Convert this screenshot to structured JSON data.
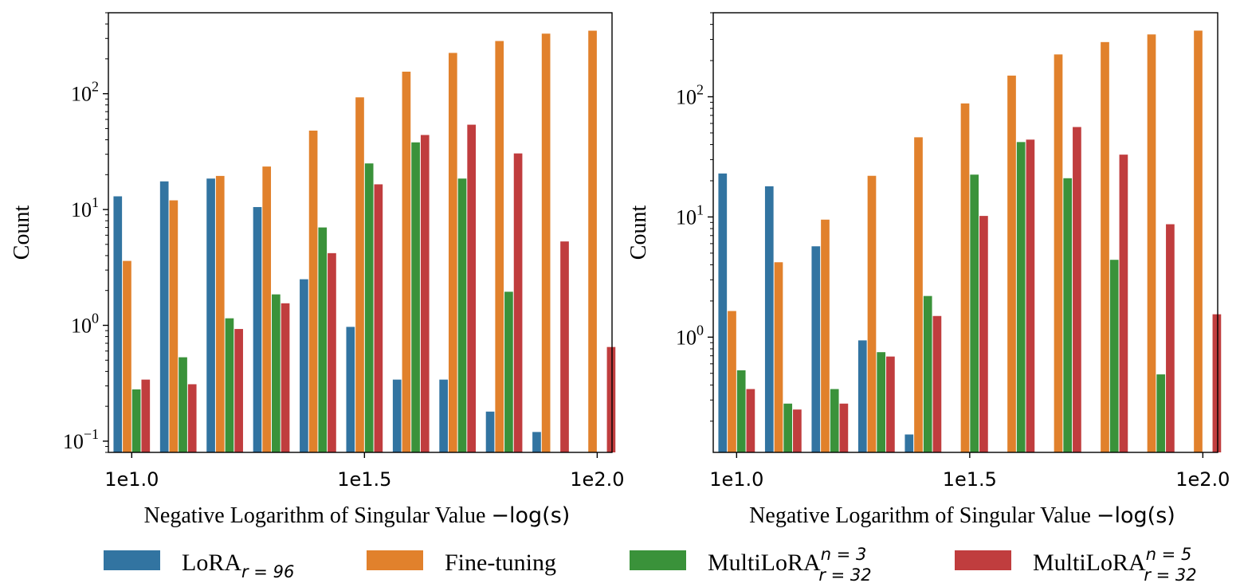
{
  "chart_data": [
    {
      "type": "bar",
      "yscale": "log",
      "ylim": [
        0.08,
        500
      ],
      "xlabel": "Negative Logarithm of Singular Value",
      "xlabel_math": "−log(s)",
      "ylabel": "Count",
      "x_ticks": [
        "1e1.0",
        "1e1.5",
        "1e2.0"
      ],
      "y_ticks": [
        {
          "base": "10",
          "exp": "−1",
          "value": 0.1
        },
        {
          "base": "10",
          "exp": "0",
          "value": 1
        },
        {
          "base": "10",
          "exp": "1",
          "value": 10
        },
        {
          "base": "10",
          "exp": "2",
          "value": 100
        }
      ],
      "num_groups": 11,
      "series": [
        {
          "name": "LoRA_r=96",
          "color": "#3274a1",
          "values": [
            13,
            17.5,
            18.5,
            10.5,
            2.5,
            0.97,
            0.34,
            0.34,
            0.18,
            0.12,
            null
          ]
        },
        {
          "name": "Fine-tuning",
          "color": "#e1812c",
          "values": [
            3.6,
            12,
            19.5,
            23.5,
            48,
            93,
            155,
            225,
            285,
            330,
            350
          ]
        },
        {
          "name": "MultiLoRA_r=32^n=3",
          "color": "#3a923a",
          "values": [
            0.28,
            0.53,
            1.15,
            1.85,
            7,
            25,
            38,
            18.5,
            1.95,
            null,
            null
          ]
        },
        {
          "name": "MultiLoRA_r=32^n=5",
          "color": "#c03d3e",
          "values": [
            0.34,
            0.31,
            0.93,
            1.55,
            4.2,
            16.5,
            44,
            54,
            30.5,
            5.3,
            0.65
          ]
        }
      ]
    },
    {
      "type": "bar",
      "yscale": "log",
      "ylim": [
        0.11,
        500
      ],
      "xlabel": "Negative Logarithm of Singular Value",
      "xlabel_math": "−log(s)",
      "ylabel": "Count",
      "x_ticks": [
        "1e1.0",
        "1e1.5",
        "1e2.0"
      ],
      "y_ticks": [
        {
          "base": "10",
          "exp": "0",
          "value": 1
        },
        {
          "base": "10",
          "exp": "1",
          "value": 10
        },
        {
          "base": "10",
          "exp": "2",
          "value": 100
        }
      ],
      "num_groups": 11,
      "series": [
        {
          "name": "LoRA_r=96",
          "color": "#3274a1",
          "values": [
            23,
            18,
            5.7,
            0.94,
            0.155,
            null,
            null,
            null,
            null,
            null,
            null
          ]
        },
        {
          "name": "Fine-tuning",
          "color": "#e1812c",
          "values": [
            1.65,
            4.2,
            9.5,
            22,
            46,
            88,
            150,
            225,
            285,
            330,
            355
          ]
        },
        {
          "name": "MultiLoRA_r=32^n=3",
          "color": "#3a923a",
          "values": [
            0.53,
            0.28,
            0.37,
            0.75,
            2.2,
            22.5,
            42,
            21,
            4.4,
            0.49,
            null
          ]
        },
        {
          "name": "MultiLoRA_r=32^n=5",
          "color": "#c03d3e",
          "values": [
            0.37,
            0.25,
            0.28,
            0.69,
            1.5,
            10.2,
            44,
            56,
            33,
            8.7,
            1.55
          ]
        }
      ]
    }
  ],
  "legend": [
    {
      "label": "LoRA",
      "sub": "r = 96",
      "sup": "",
      "color": "#3274a1"
    },
    {
      "label": "Fine-tuning",
      "sub": "",
      "sup": "",
      "color": "#e1812c"
    },
    {
      "label": "MultiLoRA",
      "sub": "r = 32",
      "sup": "n = 3",
      "color": "#3a923a"
    },
    {
      "label": "MultiLoRA",
      "sub": "r = 32",
      "sup": "n = 5",
      "color": "#c03d3e"
    }
  ]
}
